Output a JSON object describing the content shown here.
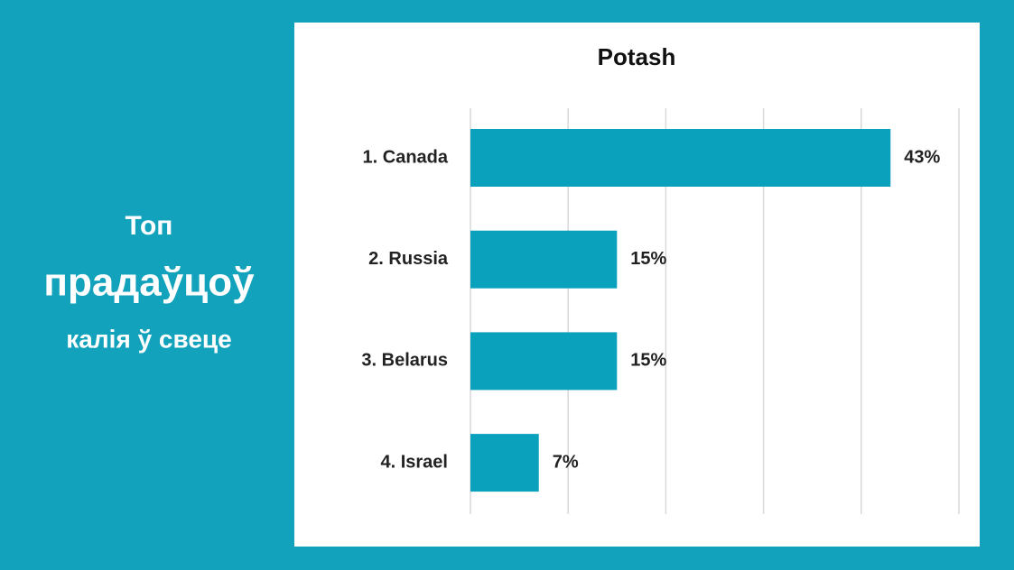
{
  "slide": {
    "heading_lines": [
      "Топ",
      "прадаўцоў",
      "калія ў свеце"
    ]
  },
  "chart_data": {
    "type": "hbar",
    "title": "Potash",
    "categories": [
      "1. Canada",
      "2. Russia",
      "3. Belarus",
      "4. Israel"
    ],
    "values": [
      43,
      15,
      15,
      7
    ],
    "value_labels": [
      "43%",
      "15%",
      "15%",
      "7%"
    ],
    "color": "#0aa1bd",
    "xlim": [
      0,
      50
    ],
    "xticks": [
      0,
      10,
      20,
      30,
      40,
      50
    ],
    "grid": true
  }
}
